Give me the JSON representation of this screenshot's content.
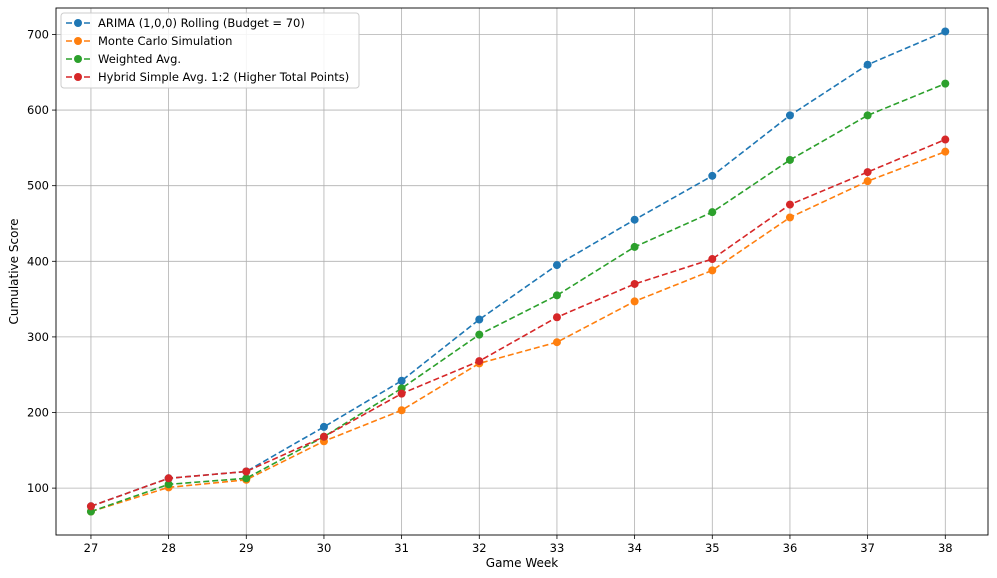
{
  "chart_data": {
    "type": "line",
    "xlabel": "Game Week",
    "ylabel": "Cumulative Score",
    "x": [
      27,
      28,
      29,
      30,
      31,
      32,
      33,
      34,
      35,
      36,
      37,
      38
    ],
    "xlim": [
      26.55,
      38.55
    ],
    "ylim": [
      38,
      735
    ],
    "yticks": [
      100,
      200,
      300,
      400,
      500,
      600,
      700
    ],
    "grid": true,
    "legend_position": "top-left",
    "series": [
      {
        "name": "ARIMA (1,0,0) Rolling (Budget = 70)",
        "color": "#1f77b4",
        "values": [
          76,
          113,
          122,
          181,
          242,
          323,
          395,
          455,
          513,
          593,
          660,
          704
        ]
      },
      {
        "name": "Monte Carlo Simulation",
        "color": "#ff7f0e",
        "values": [
          69,
          101,
          111,
          162,
          203,
          265,
          293,
          347,
          388,
          458,
          506,
          545
        ]
      },
      {
        "name": "Weighted Avg.",
        "color": "#2ca02c",
        "values": [
          69,
          105,
          113,
          168,
          232,
          303,
          355,
          419,
          465,
          534,
          593,
          635
        ]
      },
      {
        "name": "Hybrid Simple Avg. 1:2 (Higher Total Points)",
        "color": "#d62728",
        "values": [
          76,
          113,
          122,
          168,
          225,
          268,
          326,
          370,
          403,
          475,
          518,
          561
        ]
      }
    ]
  }
}
